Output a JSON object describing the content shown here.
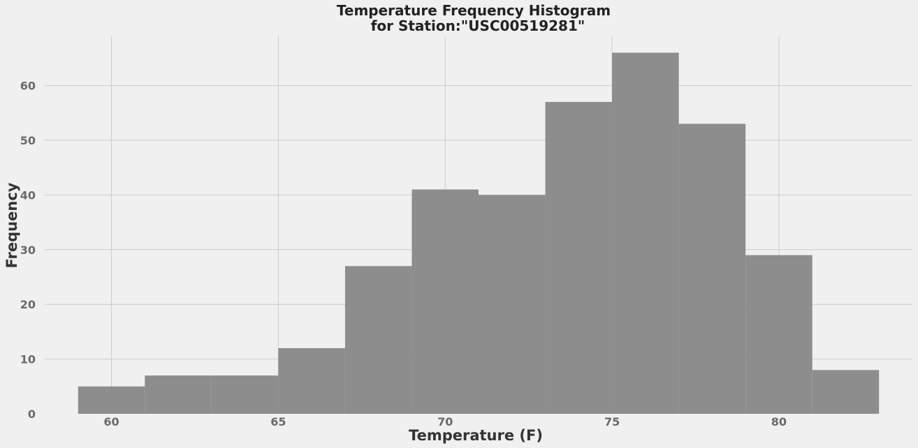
{
  "chart_data": {
    "type": "bar",
    "title_line1": "Temperature Frequency Histogram",
    "title_line2": "for Station:\"USC00519281\"",
    "xlabel": "Temperature (F)",
    "ylabel": "Frequency",
    "xlim": [
      58,
      84
    ],
    "ylim": [
      0,
      69
    ],
    "x_ticks": [
      60,
      65,
      70,
      75,
      80
    ],
    "y_ticks": [
      0,
      10,
      20,
      30,
      40,
      50,
      60
    ],
    "grid": true,
    "bar_color": "#8b8b8b",
    "grid_color": "#cbcbcb",
    "background_color": "#f0f0f0",
    "bins": [
      {
        "start": 59,
        "end": 61,
        "count": 5
      },
      {
        "start": 61,
        "end": 63,
        "count": 7
      },
      {
        "start": 63,
        "end": 65,
        "count": 7
      },
      {
        "start": 65,
        "end": 67,
        "count": 12
      },
      {
        "start": 67,
        "end": 69,
        "count": 27
      },
      {
        "start": 69,
        "end": 71,
        "count": 41
      },
      {
        "start": 71,
        "end": 73,
        "count": 40
      },
      {
        "start": 73,
        "end": 75,
        "count": 57
      },
      {
        "start": 75,
        "end": 77,
        "count": 66
      },
      {
        "start": 77,
        "end": 79,
        "count": 53
      },
      {
        "start": 79,
        "end": 81,
        "count": 29
      },
      {
        "start": 81,
        "end": 83,
        "count": 8
      }
    ]
  }
}
